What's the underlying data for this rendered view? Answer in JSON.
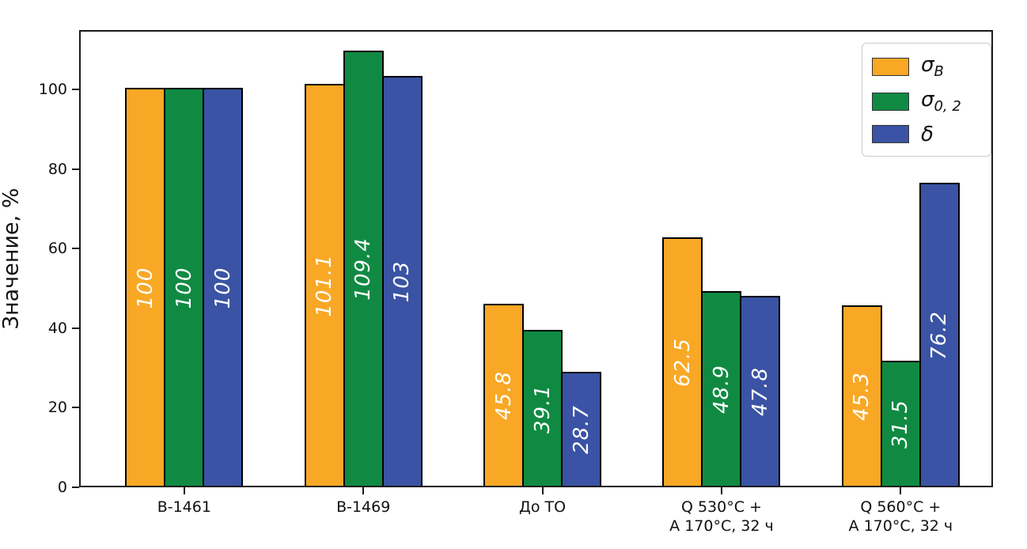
{
  "chart_data": {
    "type": "bar",
    "title": "",
    "xlabel": "",
    "ylabel": "Значение, %",
    "categories": [
      "В-1461",
      "В-1469",
      "До ТО",
      "Q 530°C +\nA 170°C, 32 ч",
      "Q 560°C +\nA 170°C, 32 ч"
    ],
    "series": [
      {
        "name": "σB",
        "label_base": "σ",
        "label_sub": "B",
        "color": "#F9A825",
        "values": [
          100,
          101.1,
          45.8,
          62.5,
          45.3
        ]
      },
      {
        "name": "σ0,2",
        "label_base": "σ",
        "label_sub": "0, 2",
        "color": "#108A43",
        "values": [
          100,
          109.4,
          39.1,
          48.9,
          31.5
        ]
      },
      {
        "name": "δ",
        "label_base": "δ",
        "label_sub": "",
        "color": "#3A53A4",
        "values": [
          100,
          103,
          28.7,
          47.8,
          76.2
        ]
      }
    ],
    "yticks": [
      0,
      20,
      40,
      60,
      80,
      100
    ],
    "ylim": [
      0,
      115
    ],
    "grid": false,
    "legend_position": "upper right",
    "bar_edge_color": "#000000",
    "value_label_color": "#ffffff",
    "spine_color": "#1a1a1a"
  }
}
